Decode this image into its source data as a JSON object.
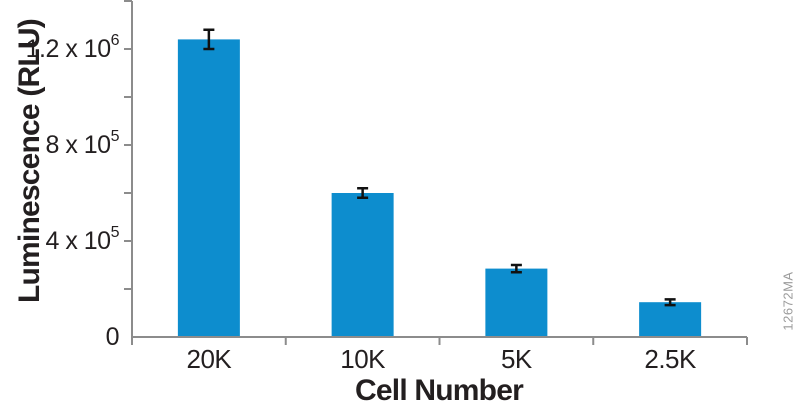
{
  "figure": {
    "watermark": "12672MA",
    "background": "#ffffff"
  },
  "chart_data": {
    "type": "bar",
    "title": "",
    "xlabel": "Cell Number",
    "ylabel": "Luminescence (RLU)",
    "categories": [
      "20K",
      "10K",
      "5K",
      "2.5K"
    ],
    "values": [
      1240000,
      600000,
      285000,
      145000
    ],
    "error_bars": [
      40000,
      20000,
      15000,
      12000
    ],
    "ylim": [
      0,
      1400000
    ],
    "y_major_ticks": [
      {
        "value": 0,
        "label": "0"
      },
      {
        "value": 400000,
        "label": "4 x 10^5"
      },
      {
        "value": 800000,
        "label": "8 x 10^5"
      },
      {
        "value": 1200000,
        "label": "1.2 x 10^6"
      }
    ],
    "y_minor_tick_step": 200000,
    "grid": false,
    "legend_position": "none",
    "bar_color": "#0d8dce",
    "axis_color": "#8c8c8c",
    "text_color": "#231f20",
    "error_bar_color": "#111111",
    "watermark_color": "#9b9b9b"
  }
}
